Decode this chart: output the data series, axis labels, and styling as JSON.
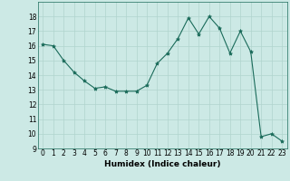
{
  "x": [
    0,
    1,
    2,
    3,
    4,
    5,
    6,
    7,
    8,
    9,
    10,
    11,
    12,
    13,
    14,
    15,
    16,
    17,
    18,
    19,
    20,
    21,
    22,
    23
  ],
  "y": [
    16.1,
    16.0,
    15.0,
    14.2,
    13.6,
    13.1,
    13.2,
    12.9,
    12.9,
    12.9,
    13.3,
    14.8,
    15.5,
    16.5,
    17.9,
    16.8,
    18.0,
    17.2,
    15.5,
    17.0,
    15.6,
    9.8,
    10.0,
    9.5
  ],
  "line_color": "#1a6b5a",
  "marker": "*",
  "marker_size": 3,
  "bg_color": "#cce9e5",
  "grid_color": "#b0d4ce",
  "xlabel": "Humidex (Indice chaleur)",
  "xlim": [
    -0.5,
    23.5
  ],
  "ylim": [
    9,
    19
  ],
  "yticks": [
    9,
    10,
    11,
    12,
    13,
    14,
    15,
    16,
    17,
    18
  ],
  "xticks": [
    0,
    1,
    2,
    3,
    4,
    5,
    6,
    7,
    8,
    9,
    10,
    11,
    12,
    13,
    14,
    15,
    16,
    17,
    18,
    19,
    20,
    21,
    22,
    23
  ],
  "xlabel_fontsize": 6.5,
  "tick_fontsize": 5.5
}
